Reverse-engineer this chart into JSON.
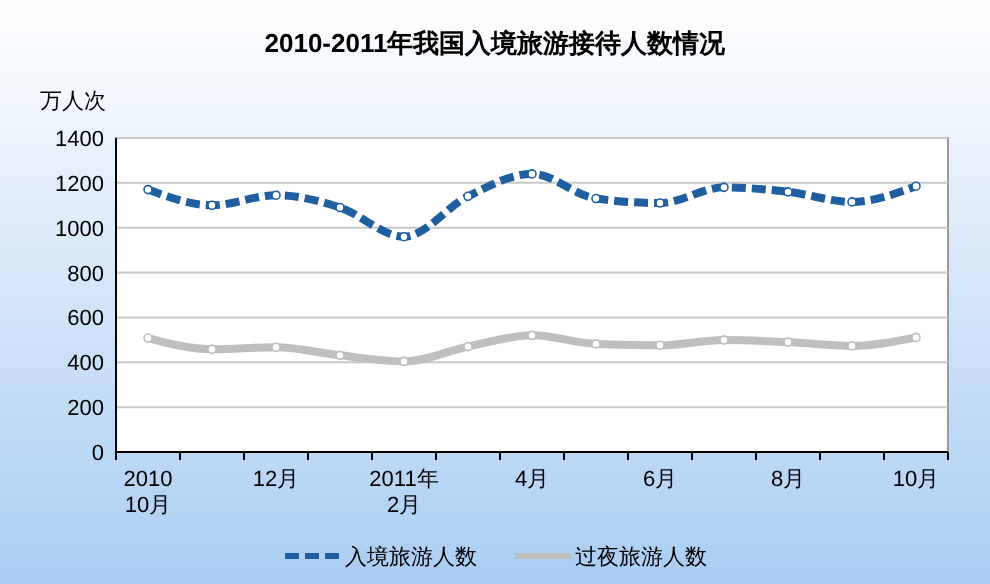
{
  "chart_data": {
    "type": "line",
    "title": "2010-2011年我国入境旅游接待人数情况",
    "ylabel": "万人次",
    "categories": [
      "2010\n10月",
      null,
      "12月",
      null,
      "2011年\n2月",
      null,
      "4月",
      null,
      "6月",
      null,
      "8月",
      null,
      "10月"
    ],
    "series": [
      {
        "name": "入境旅游人数",
        "color": "#1f5f9f",
        "line_style": "dashed",
        "values": [
          1170,
          1100,
          1145,
          1090,
          960,
          1140,
          1240,
          1130,
          1110,
          1180,
          1160,
          1115,
          1185
        ]
      },
      {
        "name": "过夜旅游人数",
        "color": "#bfbfbf",
        "line_style": "solid",
        "values": [
          508,
          458,
          467,
          431,
          404,
          470,
          520,
          482,
          476,
          499,
          490,
          473,
          511
        ]
      }
    ],
    "ylim": [
      0,
      1400
    ],
    "yticks": [
      0,
      200,
      400,
      600,
      800,
      1000,
      1200,
      1400
    ],
    "grid": "y",
    "legend": "bottom",
    "marker": "circle"
  }
}
